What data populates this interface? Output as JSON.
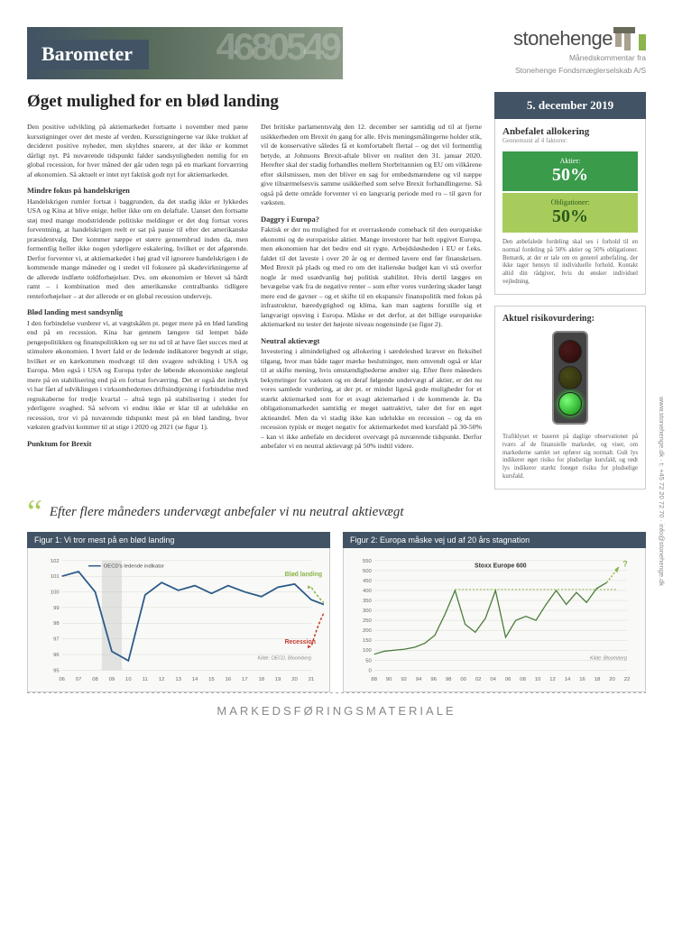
{
  "header": {
    "banner_title": "Barometer",
    "logo_text": "stonehenge",
    "logo_sub1": "Månedskommentar fra",
    "logo_sub2": "Stonehenge Fondsmæglerselskab A/S"
  },
  "article": {
    "title": "Øget mulighed for en blød landing",
    "p1": "Den positive udvikling på aktiemarkedet fortsatte i november med pæne kursstigninger over det meste af verden. Kursstigningerne var ikke trukket af decideret positive nyheder, men skyldtes snarere, at der ikke er kommet dårligt nyt. På nuværende tidspunkt falder sandsynligheden nemlig for en global recession, for hver måned der går uden tegn på en markant forværring af økonomien. Så aktuelt er intet nyt faktisk godt nyt for aktiemarkedet.",
    "h1": "Mindre fokus på handelskrigen",
    "p2": "Handelskrigen rumler fortsat i baggrunden, da det stadig ikke er lykkedes USA og Kina at blive enige, heller ikke om en delaftale. Uanset den fortsatte støj med mange modstridende politiske meldinger er det dog fortsat vores forventning, at handelskrigen reelt er sat på pause til efter det amerikanske præsidentvalg. Der kommer næppe et større gennembrud inden da, men formentlig heller ikke nogen yderligere eskalering, hvilket er det afgørende. Derfor forventer vi, at aktiemarkedet i høj grad vil ignorere handelskrigen i de kommende mange måneder og i stedet vil fokusere på skadevirkningerne af de allerede indførte toldforhøjelser. Dvs. om økonomien er blevet så hårdt ramt – i kombination med den amerikanske centralbanks tidligere renteforhøjelser – at der allerede er en global recession undervejs.",
    "h2": "Blød landing mest sandsynlig",
    "p3": "I den forbindelse vurderer vi, at vægtskålen pt. peger mere på en blød landing end på en recession. Kina har gennem længere tid lempet både pengepolitikken og finanspolitikken og ser nu ud til at have fået succes med at stimulere økonomien. I hvert fald er de ledende indikatorer begyndt at stige, hvilket er en kærkommen modvægt til den svagere udvikling i USA og Europa. Men også i USA og Europa tyder de løbende økonomiske nøgletal mere på en stabilisering end på en fortsat forværring. Det er også det indtryk vi har fået af udviklingen i virksomhedernes driftsindtjening i forbindelse med regnskaberne for tredje kvartal – altså tegn på stabilisering i stedet for yderligere svaghed. Så selvom vi endnu ikke er klar til at udelukke en recession, tror vi på nuværende tidspunkt mest på en blød landing, hvor væksten gradvist kommer til at stige i 2020 og 2021 (se figur 1).",
    "h3": "Punktum for Brexit",
    "p4": "Det britiske parlamentsvalg den 12. december ser samtidig ud til at fjerne usikkerheden om Brexit én gang for alle. Hvis meningsmålingerne holder stik, vil de konservative således få et komfortabelt flertal – og det vil formentlig betyde, at Johnsons Brexit-aftale bliver en realitet den 31. januar 2020. Herefter skal der stadig forhandles mellem Storbritannien og EU om vilkårene efter skilsmissen, men det bliver en sag for embedsmændene og vil næppe give tilnærmelsesvis samme usikkerhed som selve Brexit forhandlingerne. Så også på dette område forventer vi en langvarig periode med ro – til gavn for væksten.",
    "h4": "Daggry i Europa?",
    "p5": "Faktisk er der nu mulighed for et overraskende comeback til den europæiske økonomi og de europæiske aktier. Mange investorer har helt opgivet Europa, men økonomien har det bedre end sit rygte. Arbejdsløsheden i EU er f.eks. faldet til det laveste i over 20 år og er dermed lavere end før finanskrisen. Med Brexit på plads og med ro om det italienske budget kan vi stå overfor nogle år med usædvanlig høj politisk stabilitet. Hvis dertil lægges en bevægelse væk fra de negative renter – som efter vores vurdering skader langt mere end de gavner – og et skifte til en ekspansiv finanspolitik med fokus på infrastruktur, bæredygtighed og klima, kan man sagtens forstille sig et langvarigt opsving i Europa. Måske er det derfor, at det billige europæiske aktiemarked nu tester det højeste niveau nogensinde (se figur 2).",
    "h5": "Neutral aktievægt",
    "p6": "Investering i almindelighed og allokering i særdeleshed kræver en fleksibel tilgang, hvor man både tager mærke beslutninger, men omvendt også er klar til at skifte mening, hvis omstændighederne ændrer sig. Efter flere måneders bekymringer for væksten og en deraf følgende undervægt af aktier, er det nu vores samlede vurdering, at der pt. er mindst ligeså gode muligheder for et stærkt aktiemarked som for et svagt aktiemarked i de kommende år. Da obligationsmarkedet samtidig er meget uattraktivt, taler det for en øget aktieandel. Men da vi stadig ikke kan udelukke en recession – og da en recession typisk er meget negativ for aktiemarkedet med kursfald på 30-50% – kan vi ikke anbefale en decideret overvægt på nuværende tidspunkt. Derfor anbefaler vi en neutral aktievægt på 50% indtil videre."
  },
  "sidebar": {
    "date": "5. december 2019",
    "alloc_title": "Anbefalet allokering",
    "alloc_sub": "Gennemsnit af 4 faktorer:",
    "stocks_label": "Aktier:",
    "stocks_pct": "50%",
    "bonds_label": "Obligationer:",
    "bonds_pct": "50%",
    "alloc_note": "Den anbefalede fordeling skal ses i forhold til en normal fordeling på 50% aktier og 50% obligationer. Bemærk, at der er tale om en generel anbefaling, der ikke tager hensyn til individuelle forhold. Kontakt altid din rådgiver, hvis du ønsker individuel vejledning.",
    "risk_title": "Aktuel risikovurdering:",
    "risk_note": "Trafiklyset er baseret på daglige observationer på tværs af de finansielle markeder, og viser, om markederne samlet set opfører sig normalt. Gult lys indikerer øget risiko for pludselige kursfald, og rødt lys indikerer stærkt forøget risiko for pludselige kursfald."
  },
  "contact": "www.stonehenge.dk  ·  t: +45 72 20 72 70  ·  info@stonehenge.dk",
  "quote": "Efter flere måneders undervægt anbefaler vi nu neutral aktievægt",
  "chart1": {
    "title": "Figur 1: Vi tror mest på en blød landing",
    "legend": "OECD's ledende indikator",
    "soft_label": "Blød landing",
    "rec_label": "Recession",
    "source": "Kilde: OECD, Bloomberg",
    "ylim": [
      95,
      102
    ],
    "yticks": [
      95,
      96,
      97,
      98,
      99,
      100,
      101,
      102
    ],
    "xlabels": [
      "06",
      "07",
      "08",
      "09",
      "10",
      "11",
      "12",
      "13",
      "14",
      "15",
      "16",
      "17",
      "18",
      "19",
      "20",
      "21"
    ],
    "data": [
      101.0,
      101.3,
      100.0,
      96.2,
      95.6,
      99.8,
      100.6,
      100.1,
      100.4,
      99.9,
      100.4,
      100.0,
      99.7,
      100.3,
      100.5,
      99.5,
      99.1
    ],
    "colors": {
      "line": "#2a5a8a",
      "soft": "#8ab54a",
      "rec": "#c0392b",
      "bg": "#f9f9f7",
      "grid": "#d8d8d0"
    }
  },
  "chart2": {
    "title": "Figur 2: Europa måske vej ud af 20 års stagnation",
    "series_label": "Stoxx Europe 600",
    "source": "Kilde: Bloomberg",
    "ylim": [
      0,
      550
    ],
    "yticks": [
      0,
      50,
      100,
      150,
      200,
      250,
      300,
      350,
      400,
      450,
      500,
      550
    ],
    "xlabels": [
      "88",
      "90",
      "92",
      "94",
      "96",
      "98",
      "00",
      "02",
      "04",
      "06",
      "08",
      "10",
      "12",
      "14",
      "16",
      "18",
      "20",
      "22"
    ],
    "data": [
      80,
      95,
      100,
      105,
      115,
      135,
      175,
      280,
      400,
      230,
      190,
      260,
      400,
      165,
      250,
      270,
      250,
      330,
      400,
      330,
      390,
      340,
      410,
      440
    ],
    "colors": {
      "line": "#4a7a3a",
      "bg": "#f9f9f7",
      "grid": "#d8d8d0",
      "resist": "#8ab54a"
    }
  },
  "footer": "MARKEDSFØRINGSMATERIALE"
}
